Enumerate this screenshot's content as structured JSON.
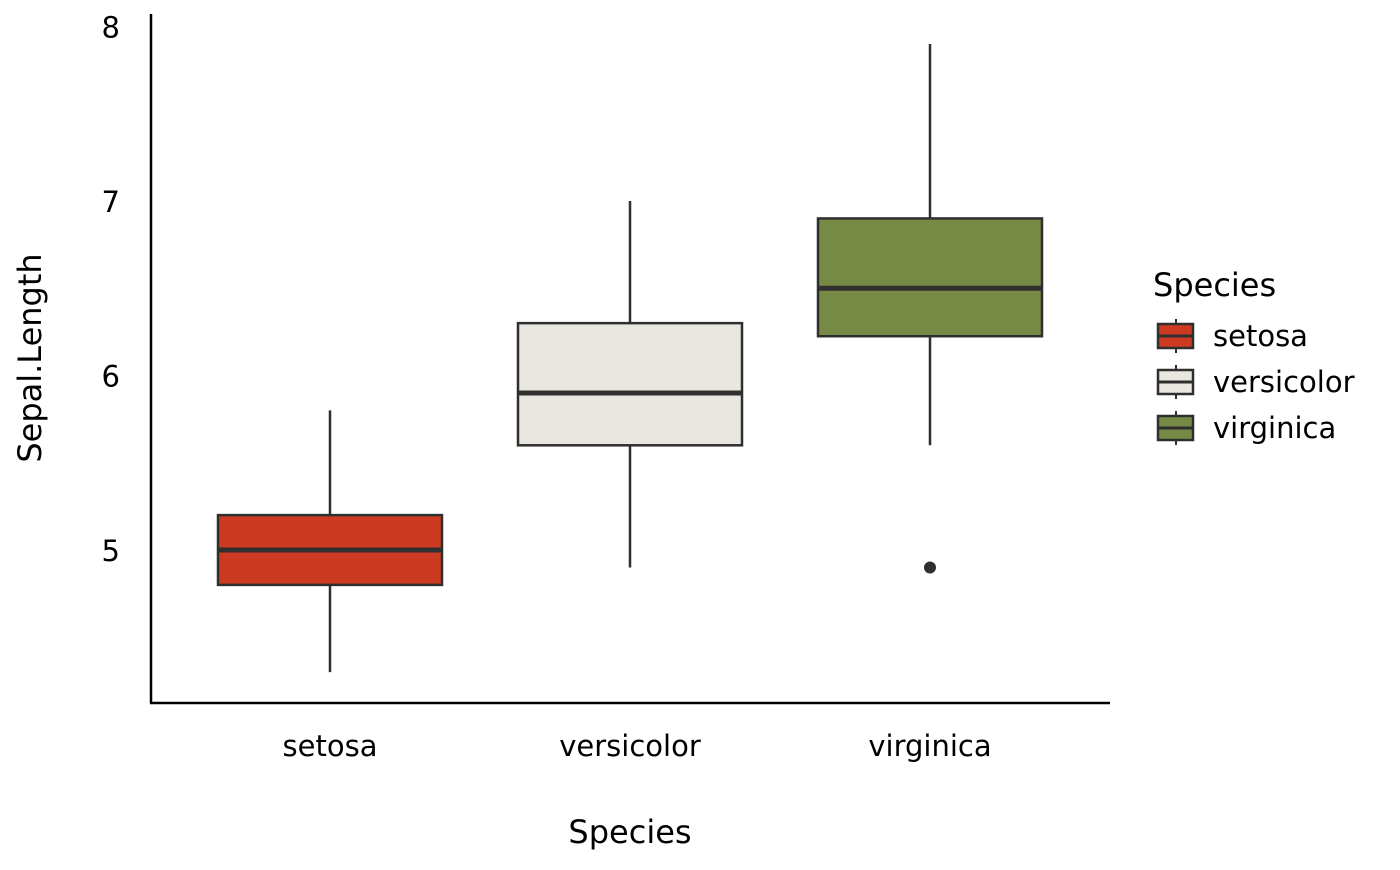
{
  "chart_data": {
    "type": "boxplot",
    "xlabel": "Species",
    "ylabel": "Sepal.Length",
    "categories": [
      "setosa",
      "versicolor",
      "virginica"
    ],
    "ylim": [
      4.2,
      8.1
    ],
    "yticks": [
      "5",
      "6",
      "7",
      "8"
    ],
    "grid": false,
    "legend": {
      "title": "Species",
      "position": "right",
      "items": [
        "setosa",
        "versicolor",
        "virginica"
      ]
    },
    "colors": {
      "setosa": "#CC3A22",
      "versicolor": "#EAE7E0",
      "virginica": "#778A45",
      "outline": "#2f2f2f"
    },
    "boxes": [
      {
        "category": "setosa",
        "whisker_low": 4.3,
        "q1": 4.8,
        "median": 5.0,
        "q3": 5.2,
        "whisker_high": 5.8,
        "outliers": []
      },
      {
        "category": "versicolor",
        "whisker_low": 4.9,
        "q1": 5.6,
        "median": 5.9,
        "q3": 6.3,
        "whisker_high": 7.0,
        "outliers": []
      },
      {
        "category": "virginica",
        "whisker_low": 5.6,
        "q1": 6.225,
        "median": 6.5,
        "q3": 6.9,
        "whisker_high": 7.9,
        "outliers": [
          4.9
        ]
      }
    ]
  }
}
